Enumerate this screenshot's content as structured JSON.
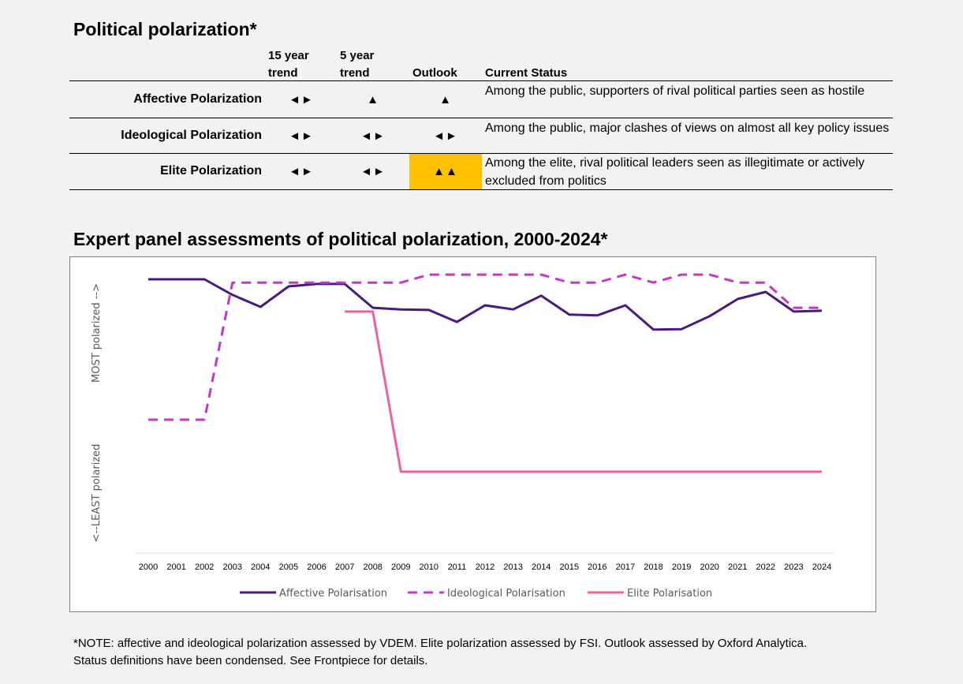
{
  "table": {
    "title": "Political polarization*",
    "headers": {
      "trend15_line1": "15 year",
      "trend15_line2": "trend",
      "trend5_line1": "5 year",
      "trend5_line2": "trend",
      "outlook": "Outlook",
      "status": "Current Status"
    },
    "rows": [
      {
        "label": "Affective Polarization",
        "trend15": "◄►",
        "trend5": "▲",
        "outlook": "▲",
        "status": "Among the public, supporters of rival political parties seen as hostile"
      },
      {
        "label": "Ideological Polarization",
        "trend15": "◄►",
        "trend5": "◄►",
        "outlook": "◄►",
        "status": "Among the public, major clashes of views on almost all key policy issues"
      },
      {
        "label": "Elite Polarization",
        "trend15": "◄►",
        "trend5": "◄►",
        "outlook": "▲▲",
        "status": "Among the elite, rival political leaders seen as illegitimate or actively excluded from politics"
      }
    ],
    "highlight_color": "#ffc000"
  },
  "chart_data": {
    "type": "line",
    "title": "Expert panel assessments of political polarization, 2000-2024*",
    "ylabel_top": "MOST polarized -->",
    "ylabel_bottom": "<--LEAST polarized",
    "x": [
      "2000",
      "2001",
      "2002",
      "2003",
      "2004",
      "2005",
      "2006",
      "2007",
      "2008",
      "2009",
      "2010",
      "2011",
      "2012",
      "2013",
      "2014",
      "2015",
      "2016",
      "2017",
      "2018",
      "2019",
      "2020",
      "2021",
      "2022",
      "2023",
      "2024"
    ],
    "ylim": [
      0,
      100
    ],
    "series": [
      {
        "name": "Affective Polarisation",
        "color": "#4b1a7f",
        "dash": "solid",
        "values": [
          100,
          100,
          100,
          94.3,
          89.9,
          97.4,
          98.3,
          98.3,
          89.6,
          89.0,
          88.8,
          84.4,
          90.5,
          89.0,
          94.0,
          87.1,
          86.8,
          90.5,
          81.6,
          81.8,
          86.5,
          92.8,
          95.4,
          88.2,
          88.5
        ]
      },
      {
        "name": "Ideological Polarisation",
        "color": "#cc33cc",
        "dash": "dashed",
        "values": [
          48.7,
          48.7,
          48.7,
          98.8,
          98.8,
          98.8,
          98.8,
          98.8,
          98.8,
          98.8,
          101.7,
          101.7,
          101.7,
          101.7,
          101.7,
          98.8,
          98.8,
          101.7,
          98.8,
          101.7,
          101.7,
          98.8,
          98.8,
          89.6,
          89.6
        ]
      },
      {
        "name": "Elite Polarisation",
        "color": "#f0609e",
        "dash": "solid",
        "values": [
          null,
          null,
          null,
          null,
          null,
          null,
          null,
          88.2,
          88.2,
          29.7,
          29.7,
          29.7,
          29.7,
          29.7,
          29.7,
          29.7,
          29.7,
          29.7,
          29.7,
          29.7,
          29.7,
          29.7,
          29.7,
          29.7,
          29.7
        ]
      }
    ],
    "legend_position": "bottom",
    "grid": false
  },
  "note": {
    "line1": "*NOTE: affective and ideological polarization assessed by VDEM. Elite polarization assessed by FSI. Outlook assessed by Oxford Analytica.",
    "line2": "Status definitions have been condensed. See Frontpiece for details."
  }
}
